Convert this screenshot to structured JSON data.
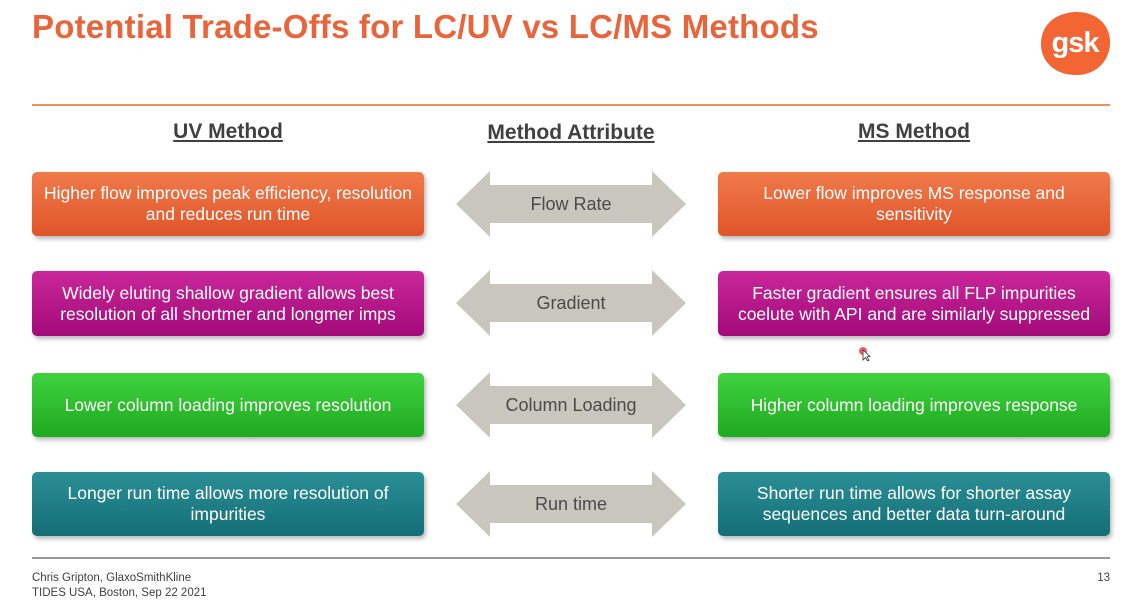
{
  "slide": {
    "title": "Potential Trade-Offs for LC/UV vs LC/MS Methods",
    "logo": {
      "text": "gsk",
      "color": "#f36633"
    }
  },
  "columns": {
    "uv": "UV Method",
    "attribute": "Method Attribute",
    "ms": "MS Method"
  },
  "rows": [
    {
      "attribute": "Flow Rate",
      "uv": "Higher flow improves peak efficiency, resolution and reduces run time",
      "ms": "Lower flow improves MS response and sensitivity",
      "color": "#e8643a"
    },
    {
      "attribute": "Gradient",
      "uv": "Widely eluting shallow gradient allows best resolution of all shortmer and longmer imps",
      "ms": "Faster gradient ensures all FLP impurities coelute with API and are similarly suppressed",
      "color": "#b8168a"
    },
    {
      "attribute": "Column Loading",
      "uv": "Lower column loading improves resolution",
      "ms": "Higher column loading improves response",
      "color": "#2fc22f"
    },
    {
      "attribute": "Run time",
      "uv": "Longer run time allows more resolution of impurities",
      "ms": "Shorter run time allows for shorter assay sequences and better data turn-around",
      "color": "#1e7f86"
    }
  ],
  "footer": {
    "author": "Chris Gripton, GlaxoSmithKline",
    "event": "TIDES USA, Boston, Sep 22 2021",
    "page": "13"
  }
}
